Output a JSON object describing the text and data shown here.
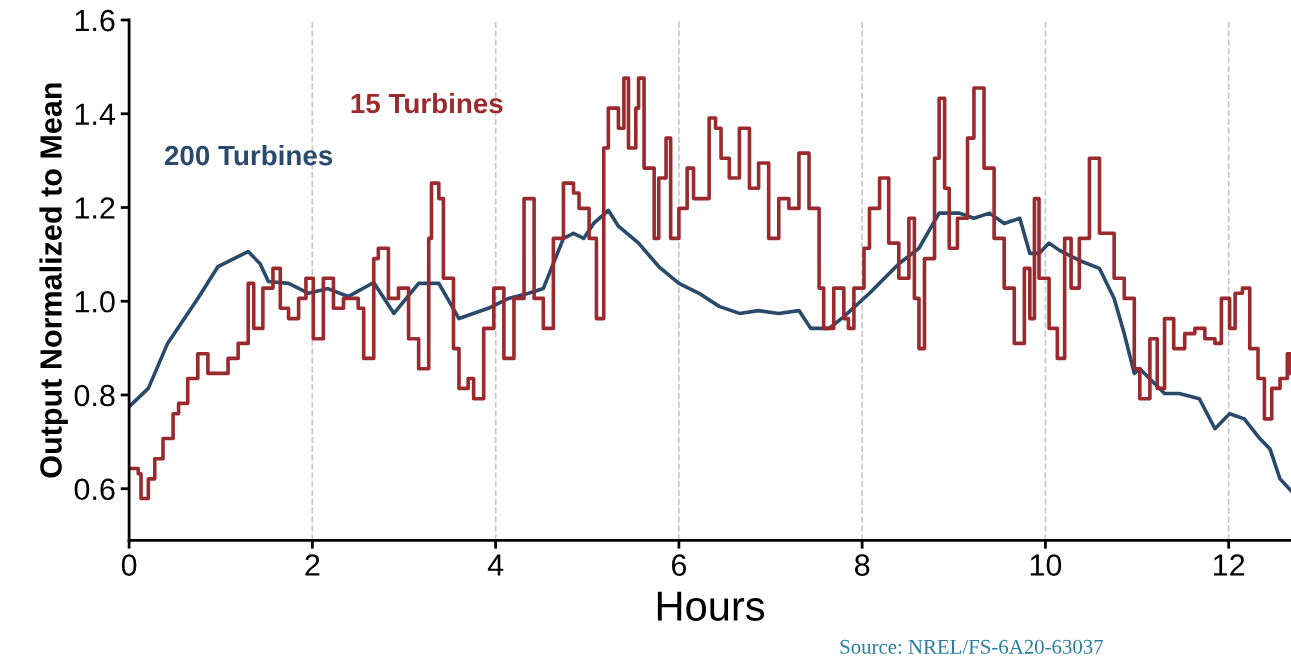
{
  "chart_data": {
    "type": "line",
    "xlabel": "Hours",
    "ylabel": "Output Normalized to Mean",
    "xlim": [
      0,
      12.68
    ],
    "ylim": [
      0.49,
      1.6
    ],
    "xticks": [
      0,
      2,
      4,
      6,
      8,
      10,
      12
    ],
    "yticks": [
      {
        "value": 0.6,
        "label": "0.6"
      },
      {
        "value": 0.8,
        "label": "0.8"
      },
      {
        "value": 1.0,
        "label": "1.0"
      },
      {
        "value": 1.2,
        "label": "1.2"
      },
      {
        "value": 1.4,
        "label": "1.4"
      },
      {
        "value": 1.6,
        "label": "1.6"
      }
    ],
    "grid": "x",
    "legend": false,
    "marker": "none",
    "line_style": "solid",
    "annotations": [
      "Source: NREL/FS-6A20-63037"
    ],
    "series": [
      {
        "name": "200 Turbines",
        "color": "#2a4a6b",
        "x": [
          0,
          0.21,
          0.42,
          0.75,
          0.97,
          1.3,
          1.43,
          1.52,
          1.74,
          1.96,
          2.17,
          2.39,
          2.67,
          2.89,
          3.16,
          3.38,
          3.6,
          3.92,
          4.14,
          4.36,
          4.52,
          4.74,
          4.85,
          4.96,
          5.07,
          5.23,
          5.34,
          5.56,
          5.78,
          6.0,
          6.22,
          6.44,
          6.66,
          6.87,
          7.09,
          7.31,
          7.44,
          7.64,
          7.8,
          8.08,
          8.4,
          8.62,
          8.84,
          9.06,
          9.22,
          9.39,
          9.55,
          9.72,
          9.83,
          9.93,
          10.04,
          10.15,
          10.37,
          10.59,
          10.75,
          10.86,
          10.97,
          11.03,
          11.3,
          11.46,
          11.68,
          11.85,
          12.01,
          12.17,
          12.34,
          12.45,
          12.56,
          12.68
        ],
        "values": [
          0.775,
          0.814,
          0.91,
          1.006,
          1.074,
          1.106,
          1.08,
          1.042,
          1.038,
          1.017,
          1.027,
          1.01,
          1.04,
          0.974,
          1.038,
          1.038,
          0.963,
          0.985,
          1.006,
          1.017,
          1.027,
          1.134,
          1.145,
          1.134,
          1.166,
          1.194,
          1.16,
          1.124,
          1.074,
          1.038,
          1.017,
          0.989,
          0.974,
          0.98,
          0.974,
          0.98,
          0.942,
          0.942,
          0.967,
          1.017,
          1.08,
          1.113,
          1.188,
          1.188,
          1.177,
          1.188,
          1.166,
          1.177,
          1.102,
          1.102,
          1.124,
          1.109,
          1.087,
          1.07,
          1.006,
          0.931,
          0.846,
          0.856,
          0.803,
          0.803,
          0.792,
          0.728,
          0.76,
          0.749,
          0.707,
          0.685,
          0.621,
          0.596
        ]
      },
      {
        "name": "15 Turbines",
        "type": "step",
        "color": "#9b2a2e",
        "x": [
          0,
          0.1,
          0.13,
          0.21,
          0.28,
          0.37,
          0.48,
          0.54,
          0.64,
          0.75,
          0.86,
          0.97,
          1.08,
          1.19,
          1.3,
          1.36,
          1.46,
          1.57,
          1.65,
          1.74,
          1.85,
          1.93,
          2.01,
          2.12,
          2.23,
          2.34,
          2.5,
          2.56,
          2.67,
          2.72,
          2.83,
          2.94,
          3.05,
          3.16,
          3.27,
          3.3,
          3.38,
          3.43,
          3.54,
          3.6,
          3.7,
          3.76,
          3.87,
          3.98,
          4.09,
          4.2,
          4.31,
          4.42,
          4.52,
          4.63,
          4.74,
          4.85,
          4.91,
          5.02,
          5.1,
          5.18,
          5.23,
          5.34,
          5.4,
          5.45,
          5.53,
          5.56,
          5.62,
          5.73,
          5.78,
          5.86,
          5.91,
          6.0,
          6.09,
          6.16,
          6.33,
          6.4,
          6.46,
          6.55,
          6.66,
          6.77,
          6.87,
          6.98,
          7.09,
          7.2,
          7.31,
          7.42,
          7.53,
          7.58,
          7.69,
          7.8,
          7.85,
          7.91,
          8.02,
          8.08,
          8.19,
          8.29,
          8.4,
          8.51,
          8.57,
          8.62,
          8.68,
          8.79,
          8.84,
          8.9,
          8.95,
          9.04,
          9.15,
          9.22,
          9.33,
          9.44,
          9.55,
          9.66,
          9.77,
          9.83,
          9.88,
          9.93,
          10.04,
          10.13,
          10.21,
          10.28,
          10.37,
          10.48,
          10.59,
          10.75,
          10.86,
          10.97,
          11.03,
          11.14,
          11.22,
          11.3,
          11.4,
          11.52,
          11.63,
          11.74,
          11.85,
          11.92,
          12.01,
          12.07,
          12.15,
          12.23,
          12.32,
          12.39,
          12.47,
          12.56,
          12.64,
          12.68
        ],
        "values": [
          0.643,
          0.632,
          0.579,
          0.621,
          0.664,
          0.707,
          0.76,
          0.782,
          0.835,
          0.888,
          0.846,
          0.846,
          0.878,
          0.91,
          1.038,
          0.942,
          1.028,
          1.07,
          0.985,
          0.963,
          1.006,
          1.049,
          0.92,
          1.049,
          0.985,
          1.006,
          0.985,
          0.878,
          1.091,
          1.113,
          1.006,
          1.028,
          0.92,
          0.856,
          1.134,
          1.252,
          1.219,
          1.049,
          0.899,
          0.814,
          0.835,
          0.792,
          0.942,
          1.028,
          0.878,
          1.006,
          1.219,
          1.006,
          0.942,
          1.134,
          1.252,
          1.231,
          1.198,
          1.134,
          0.963,
          1.327,
          1.412,
          1.369,
          1.476,
          1.327,
          1.412,
          1.476,
          1.284,
          1.134,
          1.263,
          1.348,
          1.134,
          1.198,
          1.284,
          1.219,
          1.391,
          1.369,
          1.305,
          1.263,
          1.369,
          1.241,
          1.295,
          1.134,
          1.219,
          1.198,
          1.316,
          1.198,
          1.028,
          0.942,
          1.028,
          0.963,
          0.942,
          1.028,
          1.113,
          1.198,
          1.263,
          1.124,
          1.049,
          1.177,
          1.006,
          0.899,
          1.091,
          1.305,
          1.433,
          1.241,
          1.113,
          1.177,
          1.348,
          1.455,
          1.284,
          1.134,
          1.028,
          0.91,
          1.07,
          0.963,
          1.219,
          1.049,
          0.942,
          0.878,
          1.134,
          1.028,
          1.134,
          1.305,
          1.145,
          1.049,
          1.006,
          0.856,
          0.792,
          0.92,
          0.814,
          0.963,
          0.899,
          0.931,
          0.942,
          0.92,
          0.91,
          1.006,
          0.942,
          1.017,
          1.028,
          0.899,
          0.835,
          0.749,
          0.814,
          0.835,
          0.888,
          0.846
        ]
      }
    ]
  }
}
